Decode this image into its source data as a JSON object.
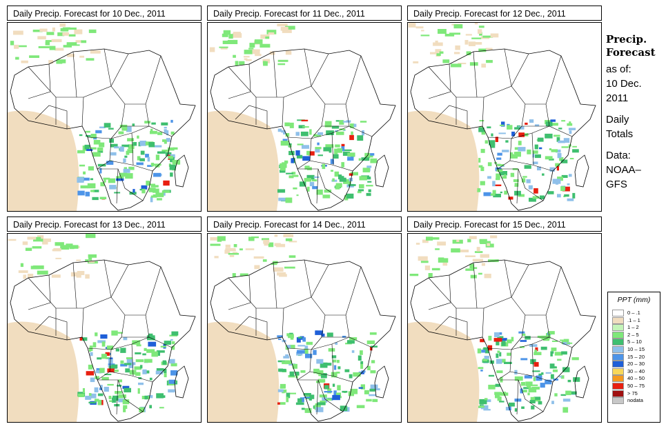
{
  "panels": [
    {
      "title": "Daily Precip. Forecast for  10 Dec., 2011"
    },
    {
      "title": "Daily Precip. Forecast for  11 Dec., 2011"
    },
    {
      "title": "Daily Precip. Forecast for  12 Dec., 2011"
    },
    {
      "title": "Daily Precip. Forecast for  13 Dec., 2011"
    },
    {
      "title": "Daily Precip. Forecast for  14 Dec., 2011"
    },
    {
      "title": "Daily Precip. Forecast for  15 Dec., 2011"
    }
  ],
  "side": {
    "heading1": "Precip.",
    "heading2": "Forecast",
    "asof_label": "as of:",
    "date_line1": "10 Dec.",
    "date_line2": "2011",
    "totals_line1": "Daily",
    "totals_line2": "Totals",
    "data_line1": "Data:",
    "data_line2": "NOAA–",
    "data_line3": "GFS"
  },
  "legend": {
    "title": "PPT (mm)",
    "items": [
      {
        "label": "0 – .1",
        "color": "#ffffff"
      },
      {
        "label": ".1 – 1",
        "color": "#f1ddbf"
      },
      {
        "label": "1 – 2",
        "color": "#c4f5b9"
      },
      {
        "label": "2 – 5",
        "color": "#7fe87a"
      },
      {
        "label": "5 – 10",
        "color": "#3fbf6f"
      },
      {
        "label": "10 – 15",
        "color": "#8fc0ea"
      },
      {
        "label": "15 – 20",
        "color": "#4d94e8"
      },
      {
        "label": "20 – 30",
        "color": "#1f5fd8"
      },
      {
        "label": "30 – 40",
        "color": "#f8d85a"
      },
      {
        "label": "40 – 50",
        "color": "#f59a20"
      },
      {
        "label": "50 – 75",
        "color": "#e81f10"
      },
      {
        "label": "> 75",
        "color": "#a01010"
      },
      {
        "label": "nodata",
        "color": "#c8c8c8"
      }
    ]
  }
}
